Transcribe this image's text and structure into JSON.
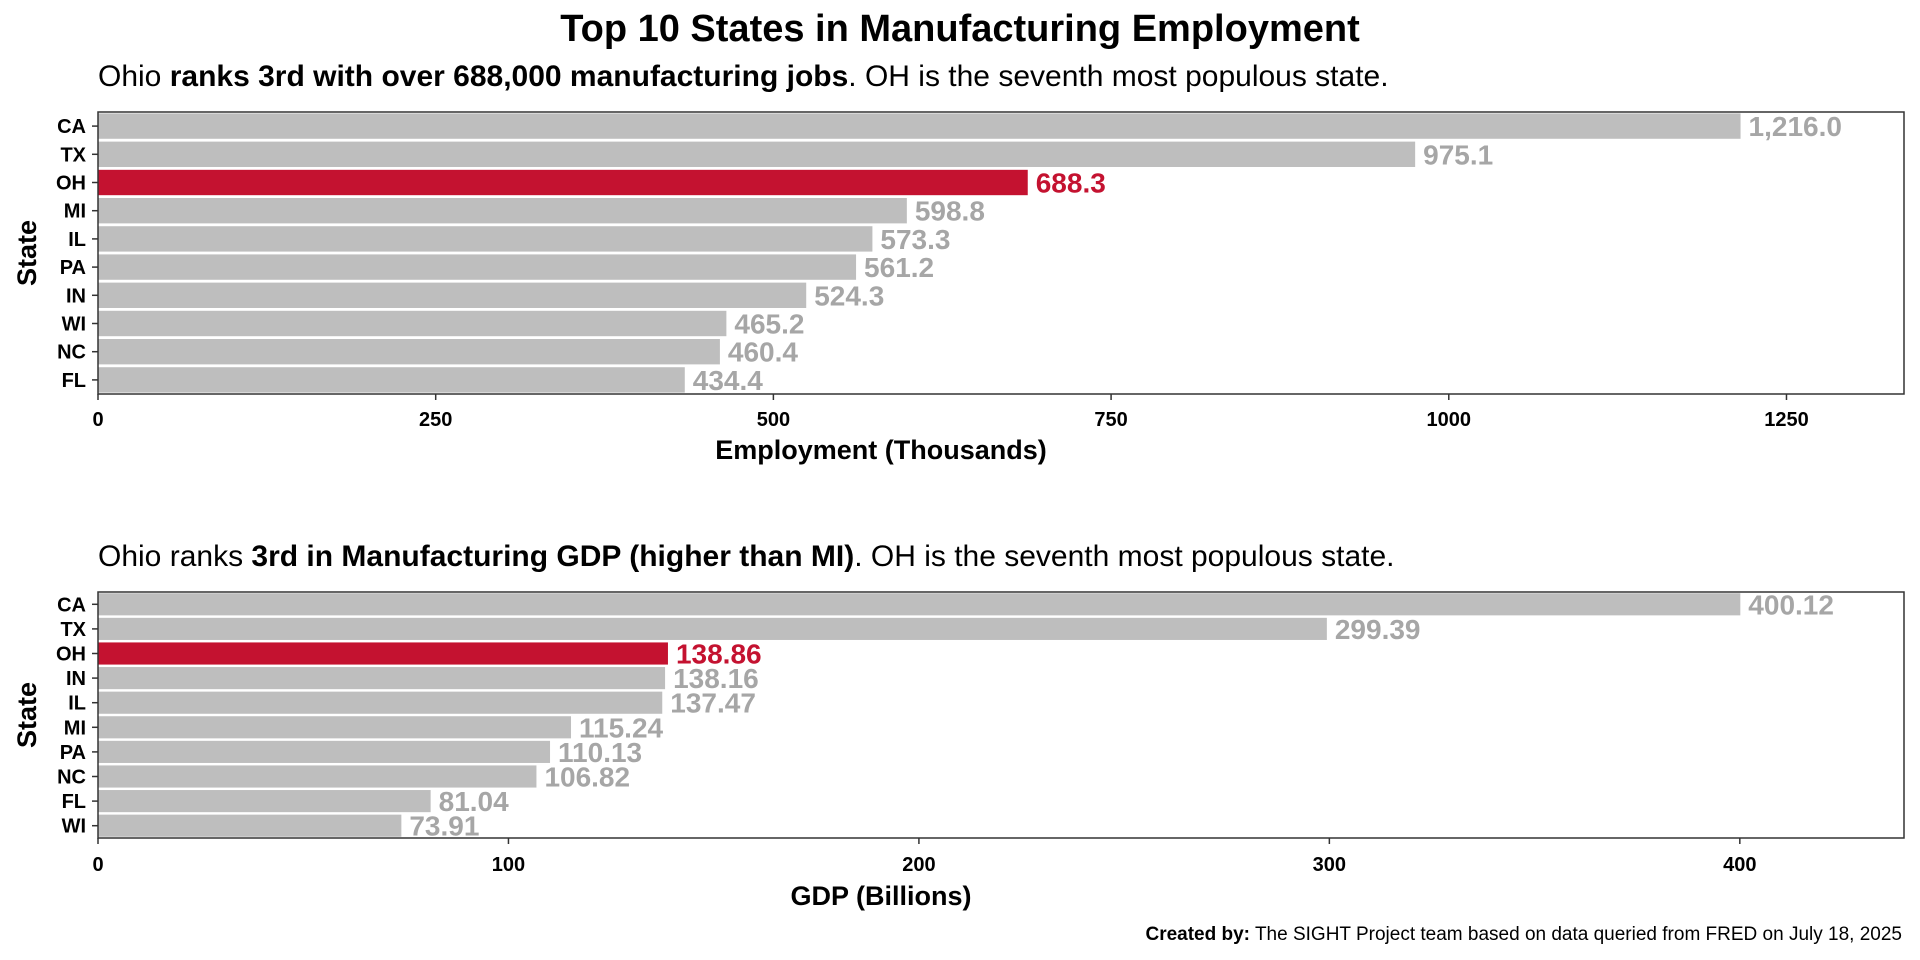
{
  "title": "Top 10 States in Manufacturing Employment",
  "colors": {
    "bar_default": "#bebebe",
    "bar_highlight": "#c41230",
    "label_default": "#a6a6a6",
    "label_highlight": "#c41230"
  },
  "caption": {
    "prefix": "Created by:",
    "text": " The SIGHT Project team based on data queried from FRED on July 18, 2025"
  },
  "chart_data": [
    {
      "type": "bar",
      "orientation": "horizontal",
      "subtitle": {
        "parts": [
          {
            "text": "Ohio ",
            "bold": false
          },
          {
            "text": "ranks 3rd with over 688,000 manufacturing jobs",
            "bold": true
          },
          {
            "text": ". OH is the seventh most populous state.",
            "bold": false
          }
        ]
      },
      "categories": [
        "CA",
        "TX",
        "OH",
        "MI",
        "IL",
        "PA",
        "IN",
        "WI",
        "NC",
        "FL"
      ],
      "values": [
        1216.0,
        975.1,
        688.3,
        598.8,
        573.3,
        561.2,
        524.3,
        465.2,
        460.4,
        434.4
      ],
      "value_labels": [
        "1,216.0",
        "975.1",
        "688.3",
        "598.8",
        "573.3",
        "561.2",
        "524.3",
        "465.2",
        "460.4",
        "434.4"
      ],
      "highlight": "OH",
      "xlabel": "Employment (Thousands)",
      "ylabel": "State",
      "xticks": [
        0,
        250,
        500,
        750,
        1000,
        1250
      ],
      "xtick_labels": [
        "0",
        "250",
        "500",
        "750",
        "1000",
        "1250"
      ],
      "xlim": [
        0,
        1337
      ],
      "grid": false
    },
    {
      "type": "bar",
      "orientation": "horizontal",
      "subtitle": {
        "parts": [
          {
            "text": "Ohio ranks ",
            "bold": false
          },
          {
            "text": "3rd in Manufacturing GDP (higher than MI)",
            "bold": true
          },
          {
            "text": ". OH is the seventh most populous state.",
            "bold": false
          }
        ]
      },
      "categories": [
        "CA",
        "TX",
        "OH",
        "IN",
        "IL",
        "MI",
        "PA",
        "NC",
        "FL",
        "WI"
      ],
      "values": [
        400.12,
        299.39,
        138.86,
        138.16,
        137.47,
        115.24,
        110.13,
        106.82,
        81.04,
        73.91
      ],
      "value_labels": [
        "400.12",
        "299.39",
        "138.86",
        "138.16",
        "137.47",
        "115.24",
        "110.13",
        "106.82",
        "81.04",
        "73.91"
      ],
      "highlight": "OH",
      "xlabel": "GDP (Billions)",
      "ylabel": "State",
      "xticks": [
        0,
        100,
        200,
        300,
        400
      ],
      "xtick_labels": [
        "0",
        "100",
        "200",
        "300",
        "400"
      ],
      "xlim": [
        0,
        440
      ],
      "grid": false
    }
  ]
}
